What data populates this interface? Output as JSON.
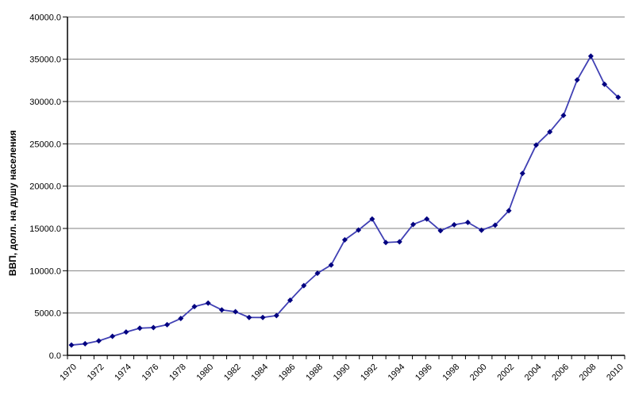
{
  "chart_data": {
    "type": "line",
    "title": "",
    "xlabel": "",
    "ylabel": "ВВП, долл. на душу населения",
    "x": [
      1970,
      1971,
      1972,
      1973,
      1974,
      1975,
      1976,
      1977,
      1978,
      1979,
      1980,
      1981,
      1982,
      1983,
      1984,
      1985,
      1986,
      1987,
      1988,
      1989,
      1990,
      1991,
      1992,
      1993,
      1994,
      1995,
      1996,
      1997,
      1998,
      1999,
      2000,
      2001,
      2002,
      2003,
      2004,
      2005,
      2006,
      2007,
      2008,
      2009,
      2010
    ],
    "values": [
      1213,
      1367,
      1709,
      2247,
      2749,
      3210,
      3279,
      3626,
      4356,
      5771,
      6174,
      5371,
      5159,
      4478,
      4473,
      4699,
      6513,
      8239,
      9703,
      10681,
      13650,
      14811,
      16112,
      13339,
      13416,
      15471,
      16110,
      14731,
      15434,
      15717,
      14790,
      15384,
      17101,
      21509,
      24861,
      26419,
      28365,
      32550,
      35366,
      32042,
      30502
    ],
    "ylim": [
      0,
      40000
    ],
    "ytick_step": 5000,
    "ytick_labels": [
      "0.0",
      "5000.0",
      "10000.0",
      "15000.0",
      "20000.0",
      "25000.0",
      "30000.0",
      "35000.0",
      "40000.0"
    ],
    "xtick_labels": [
      "1970",
      "1972",
      "1974",
      "1976",
      "1978",
      "1980",
      "1982",
      "1984",
      "1986",
      "1988",
      "1990",
      "1992",
      "1994",
      "1996",
      "1998",
      "2000",
      "2002",
      "2004",
      "2006",
      "2008",
      "2010"
    ],
    "grid": "horizontal",
    "legend": "none",
    "marker": "diamond",
    "colors": {
      "line": "#4040B4",
      "marker": "#000080",
      "grid": "#808080",
      "axis": "#000000",
      "text": "#000000",
      "background": "#FFFFFF"
    }
  }
}
